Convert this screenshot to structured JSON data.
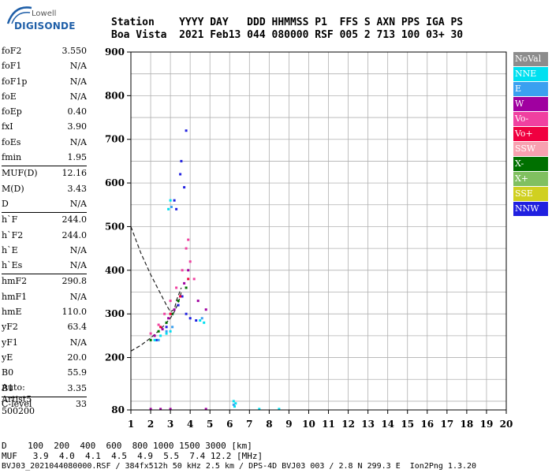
{
  "logo": {
    "top": "Lowell",
    "bottom": "DIGISONDE"
  },
  "header": {
    "row1": "Station    YYYY DAY   DDD HHMMSS P1  FFS S AXN PPS IGA PS",
    "row2": "Boa Vista  2021 Feb13 044 080000 RSF 005 2 713 100 03+ 30"
  },
  "params": [
    {
      "name": "foF2",
      "value": "3.550"
    },
    {
      "name": "foF1",
      "value": "N/A"
    },
    {
      "name": "foF1p",
      "value": "N/A"
    },
    {
      "name": "foE",
      "value": "N/A"
    },
    {
      "name": "foEp",
      "value": "0.40"
    },
    {
      "name": "fxI",
      "value": "3.90"
    },
    {
      "name": "foEs",
      "value": "N/A"
    },
    {
      "name": "fmin",
      "value": "1.95"
    },
    {
      "sep": true
    },
    {
      "name": "MUF(D)",
      "value": "12.16"
    },
    {
      "name": "M(D)",
      "value": "3.43"
    },
    {
      "name": "D",
      "value": "N/A"
    },
    {
      "sep": true
    },
    {
      "name": "h`F",
      "value": "244.0"
    },
    {
      "name": "h`F2",
      "value": "244.0"
    },
    {
      "name": "h`E",
      "value": "N/A"
    },
    {
      "name": "h`Es",
      "value": "N/A"
    },
    {
      "sep": true
    },
    {
      "name": "hmF2",
      "value": "290.8"
    },
    {
      "name": "hmF1",
      "value": "N/A"
    },
    {
      "name": "hmE",
      "value": "110.0"
    },
    {
      "name": "yF2",
      "value": "63.4"
    },
    {
      "name": "yF1",
      "value": "N/A"
    },
    {
      "name": "yE",
      "value": "20.0"
    },
    {
      "name": "B0",
      "value": "55.9"
    },
    {
      "name": "B1",
      "value": "3.35"
    },
    {
      "sep": true
    },
    {
      "name": "C-level",
      "value": "33"
    }
  ],
  "auto": {
    "line1": "Auto:",
    "line2": "Artist5",
    "line3": "500200"
  },
  "footer": {
    "distance": "D    100  200  400  600  800 1000 1500 3000 [km]",
    "muf": "MUF   3.9  4.0  4.1  4.5  4.9  5.5  7.4 12.2 [MHz]",
    "info": "BVJ03_2021044080000.RSF / 384fx512h 50 kHz 2.5 km / DPS-4D BVJ03 003 / 2.8 N 299.3 E  Ion2Png 1.3.20"
  },
  "legend": [
    {
      "label": "NoVal",
      "color": "#8c8c8c"
    },
    {
      "label": "NNE",
      "color": "#00e0f0"
    },
    {
      "label": "E",
      "color": "#3aa0f0"
    },
    {
      "label": "W",
      "color": "#a000a0"
    },
    {
      "label": "Vo-",
      "color": "#f040a0"
    },
    {
      "label": "Vo+",
      "color": "#f00040"
    },
    {
      "label": "SSW",
      "color": "#f8a0b0"
    },
    {
      "label": "X-",
      "color": "#007000"
    },
    {
      "label": "X+",
      "color": "#80c060"
    },
    {
      "label": "SSE",
      "color": "#d0d020"
    },
    {
      "label": "NNW",
      "color": "#2020e0"
    }
  ],
  "chart_data": {
    "type": "scatter",
    "title": "",
    "xlabel": "",
    "ylabel": "",
    "xlim": [
      1,
      20
    ],
    "ylim": [
      80,
      900
    ],
    "grid": true,
    "x_ticks": [
      1,
      2,
      3,
      4,
      5,
      6,
      7,
      8,
      9,
      10,
      11,
      12,
      13,
      14,
      15,
      16,
      17,
      18,
      19,
      20
    ],
    "y_ticks": [
      80,
      200,
      300,
      400,
      500,
      600,
      700,
      800,
      900
    ],
    "legend_position": "right",
    "series": [
      {
        "name": "NNW",
        "color": "#2020e0",
        "points": [
          [
            2.3,
            240
          ],
          [
            2.8,
            270
          ],
          [
            3.1,
            300
          ],
          [
            3.4,
            320
          ],
          [
            3.6,
            340
          ],
          [
            3.8,
            300
          ],
          [
            4.0,
            290
          ],
          [
            4.3,
            285
          ],
          [
            3.2,
            560
          ],
          [
            3.3,
            540
          ],
          [
            3.5,
            620
          ],
          [
            3.55,
            650
          ],
          [
            3.7,
            590
          ],
          [
            3.8,
            720
          ]
        ]
      },
      {
        "name": "Vo-",
        "color": "#f040a0",
        "points": [
          [
            2.0,
            255
          ],
          [
            2.4,
            275
          ],
          [
            2.7,
            300
          ],
          [
            3.0,
            330
          ],
          [
            3.3,
            360
          ],
          [
            3.6,
            400
          ],
          [
            3.8,
            450
          ],
          [
            4.0,
            420
          ],
          [
            4.2,
            380
          ],
          [
            3.9,
            470
          ]
        ]
      },
      {
        "name": "W",
        "color": "#a000a0",
        "points": [
          [
            2.2,
            250
          ],
          [
            2.6,
            265
          ],
          [
            2.9,
            290
          ],
          [
            3.2,
            310
          ],
          [
            3.5,
            340
          ],
          [
            3.7,
            370
          ],
          [
            3.9,
            400
          ],
          [
            4.4,
            330
          ],
          [
            4.8,
            310
          ],
          [
            2.0,
            82
          ],
          [
            2.5,
            82
          ],
          [
            3.0,
            82
          ],
          [
            4.8,
            82
          ]
        ]
      },
      {
        "name": "X-",
        "color": "#007000",
        "points": [
          [
            2.0,
            240
          ],
          [
            2.4,
            260
          ],
          [
            2.8,
            280
          ],
          [
            3.1,
            300
          ],
          [
            3.4,
            330
          ],
          [
            3.8,
            360
          ]
        ]
      },
      {
        "name": "Vo+",
        "color": "#f00040",
        "points": [
          [
            2.5,
            270
          ],
          [
            3.0,
            300
          ],
          [
            3.5,
            340
          ],
          [
            3.9,
            380
          ]
        ]
      },
      {
        "name": "NNE",
        "color": "#00e0f0",
        "points": [
          [
            2.2,
            240
          ],
          [
            2.5,
            250
          ],
          [
            2.8,
            255
          ],
          [
            3.0,
            260
          ],
          [
            4.5,
            285
          ],
          [
            4.7,
            280
          ],
          [
            2.9,
            540
          ],
          [
            3.0,
            560
          ],
          [
            6.2,
            100
          ],
          [
            6.25,
            88
          ],
          [
            6.3,
            95
          ],
          [
            7.5,
            82
          ],
          [
            8.5,
            82
          ]
        ]
      },
      {
        "name": "E",
        "color": "#3aa0f0",
        "points": [
          [
            2.4,
            240
          ],
          [
            2.8,
            260
          ],
          [
            3.1,
            270
          ],
          [
            4.6,
            290
          ],
          [
            3.05,
            545
          ],
          [
            6.2,
            92
          ]
        ]
      }
    ],
    "profile_curve": {
      "x": [
        1.0,
        1.5,
        2.0,
        2.4,
        2.8,
        3.0,
        3.2,
        3.3,
        3.55
      ],
      "y": [
        500,
        440,
        390,
        355,
        320,
        305,
        310,
        330,
        360
      ]
    },
    "trace_curve": {
      "x": [
        1.0,
        1.5,
        2.0,
        2.5,
        3.0,
        3.2,
        3.4,
        3.55
      ],
      "y": [
        215,
        228,
        245,
        265,
        290,
        305,
        325,
        350
      ]
    }
  }
}
